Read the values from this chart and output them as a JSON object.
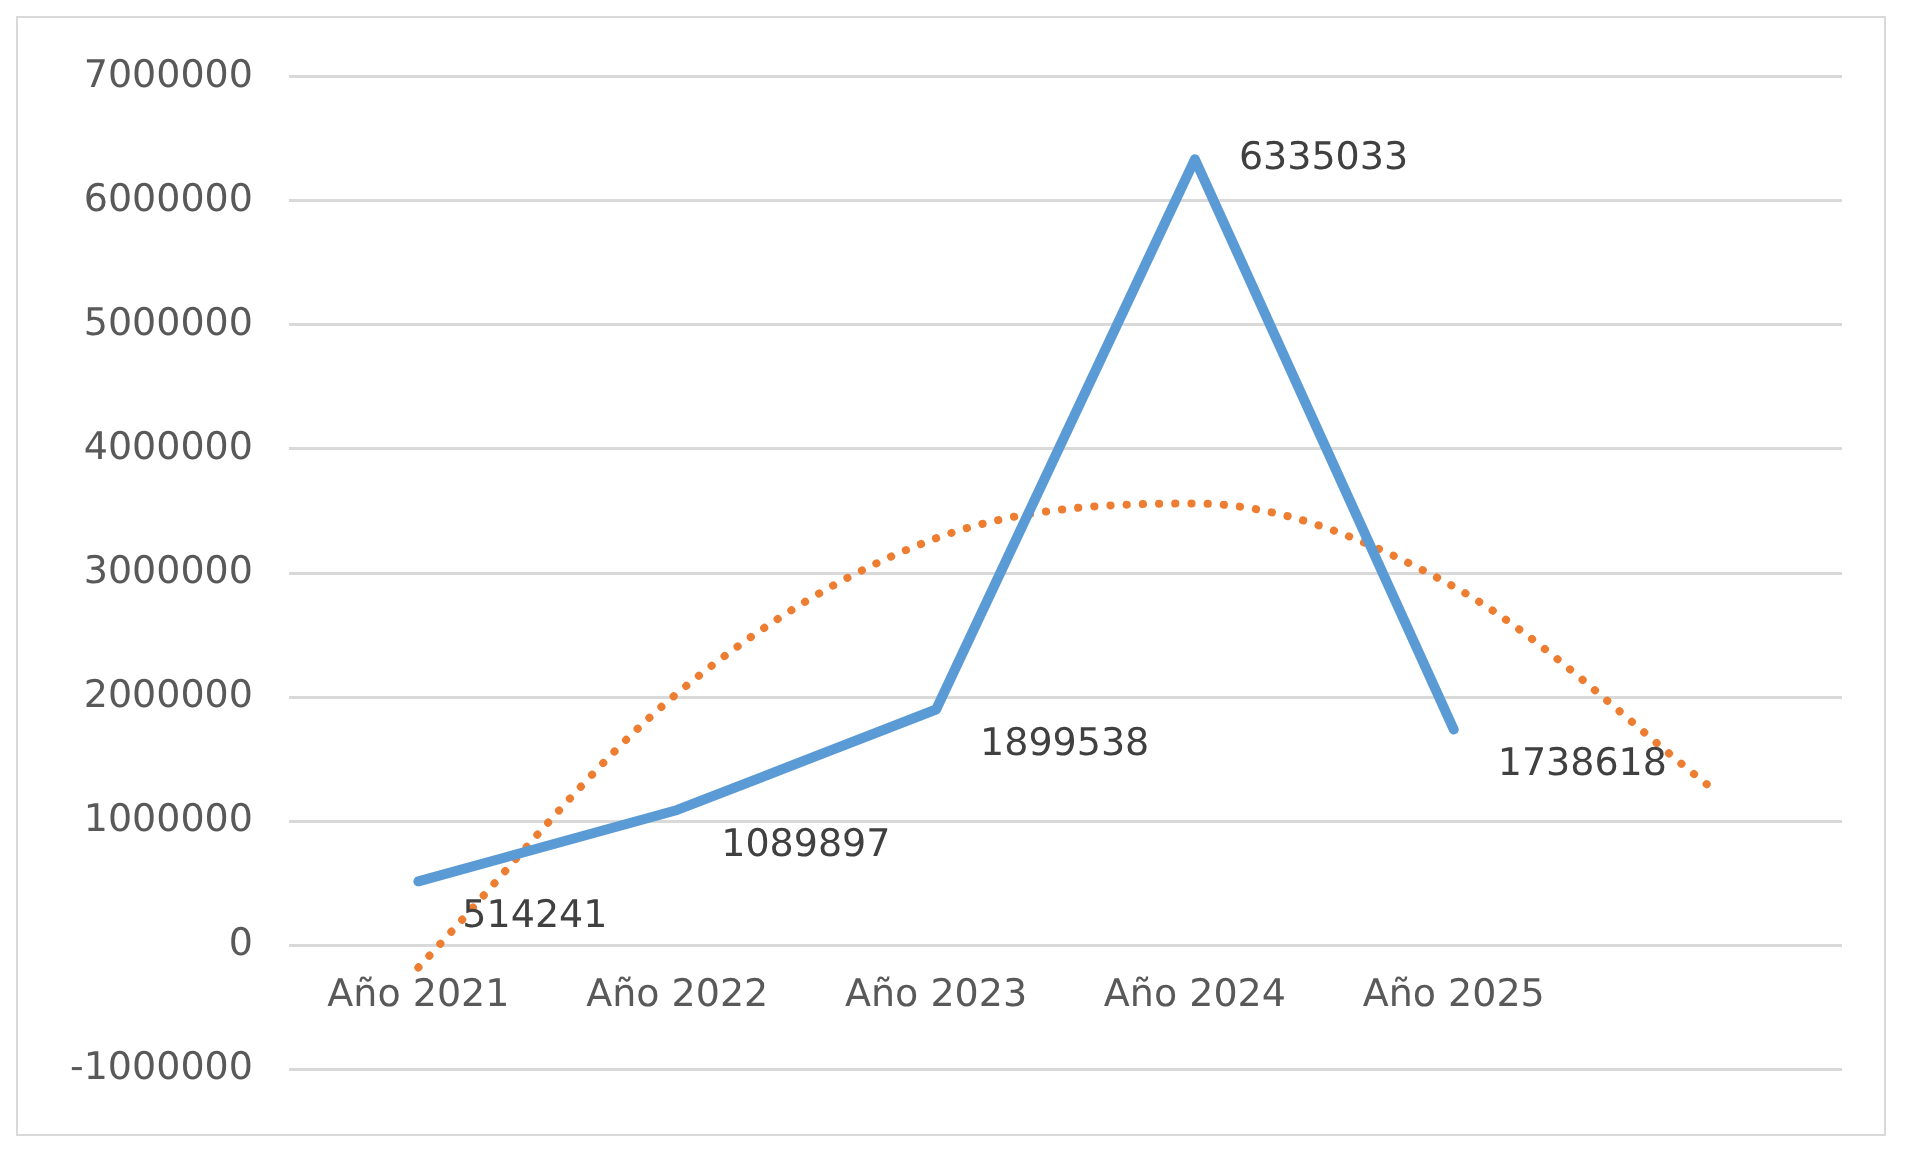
{
  "chart_data": {
    "type": "line",
    "categories": [
      "Año 2021",
      "Año 2022",
      "Año 2023",
      "Año 2024",
      "Año 2025",
      null
    ],
    "series": [
      {
        "color": "#5b9bd5",
        "line_style": "solid",
        "values": [
          514241,
          1089897,
          1899538,
          6335033,
          1738618,
          null
        ],
        "value_labels": [
          "514241",
          "1089897",
          "1899538",
          "6335033",
          "1738618",
          null
        ]
      },
      {
        "color": "#ed7d31",
        "line_style": "dotted",
        "values": [
          -180000,
          2030000,
          3280000,
          3560000,
          2890000,
          1260000
        ]
      }
    ],
    "ylim": [
      -1000000,
      7000000
    ],
    "yticks": [
      -1000000,
      0,
      1000000,
      2000000,
      3000000,
      4000000,
      5000000,
      6000000,
      7000000
    ],
    "grid": "y",
    "legend": false,
    "marker": "none"
  }
}
